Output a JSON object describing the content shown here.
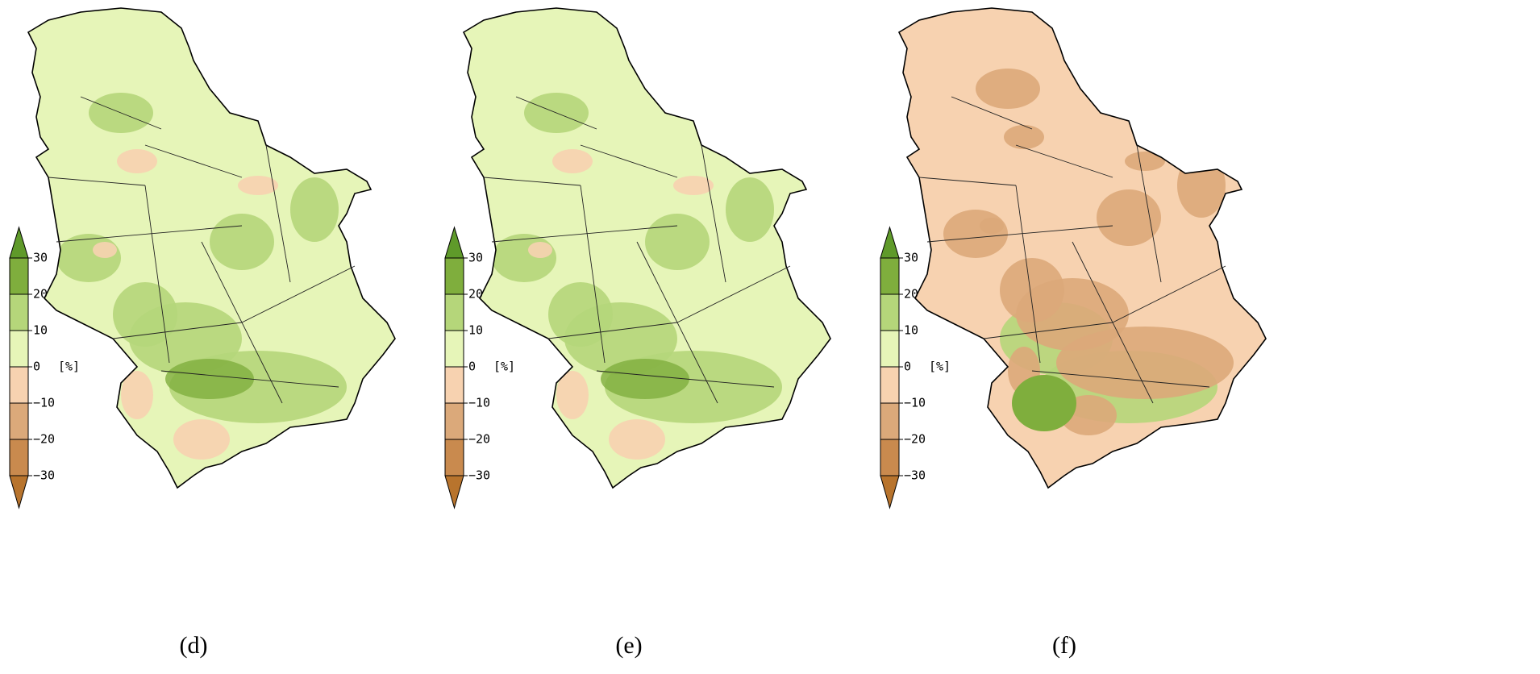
{
  "panels": [
    {
      "label": "(d)",
      "base": "#e6f5b8"
    },
    {
      "label": "(e)",
      "base": "#e6f5b8"
    },
    {
      "label": "(f)",
      "base": "#f7d2b0"
    }
  ],
  "colorbar": {
    "unit": "[%]",
    "ticks": [
      30,
      20,
      10,
      0,
      {
        "value": -10,
        "label": "−10"
      },
      {
        "value": -20,
        "label": "−20"
      },
      {
        "value": -30,
        "label": "−30"
      }
    ],
    "colors": [
      "#7fae3d",
      "#b5d67a",
      "#e6f5b8",
      "#f7d2b0",
      "#dba97a",
      "#c98a4e"
    ],
    "extend_colors": [
      "#5f9a2a",
      "#b8742d"
    ]
  }
}
